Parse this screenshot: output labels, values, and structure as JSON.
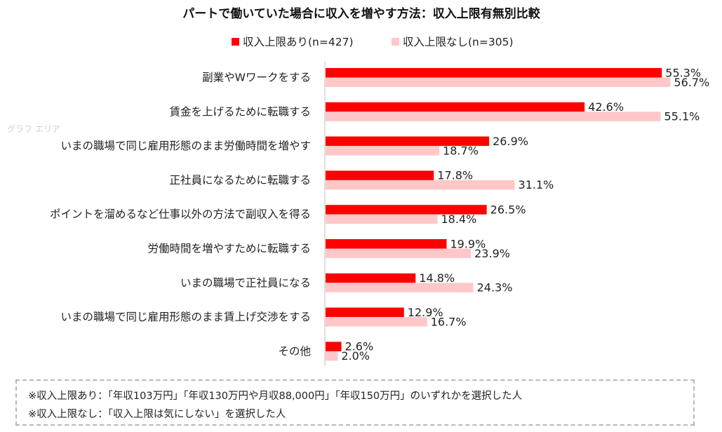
{
  "chart_data": {
    "type": "bar",
    "orientation": "horizontal",
    "title": "パートで働いていた場合に収入を増やす方法：収入上限有無別比較",
    "categories": [
      "副業やWワークをする",
      "賃金を上げるために転職する",
      "いまの職場で同じ雇用形態のまま労働時間を増やす",
      "正社員になるために転職する",
      "ポイントを溜めるなど仕事以外の方法で副収入を得る",
      "労働時間を増やすために転職する",
      "いまの職場で正社員になる",
      "いまの職場で同じ雇用形態のまま賃上げ交渉をする",
      "その他"
    ],
    "series": [
      {
        "name": "収入上限あり(n=427)",
        "color": "#ff0000",
        "values": [
          55.3,
          42.6,
          26.9,
          17.8,
          26.5,
          19.9,
          14.8,
          12.9,
          2.6
        ],
        "labels": [
          "55.3%",
          "42.6%",
          "26.9%",
          "17.8%",
          "26.5%",
          "19.9%",
          "14.8%",
          "12.9%",
          "2.6%"
        ]
      },
      {
        "name": "収入上限なし(n=305)",
        "color": "#ffc7c7",
        "values": [
          56.7,
          55.1,
          18.7,
          31.1,
          18.4,
          23.9,
          24.3,
          16.7,
          2.0
        ],
        "labels": [
          "56.7%",
          "55.1%",
          "18.7%",
          "31.1%",
          "18.4%",
          "23.9%",
          "24.3%",
          "16.7%",
          "2.0%"
        ]
      }
    ],
    "xlim": [
      0,
      57
    ],
    "legend_position": "top-center",
    "grid": false
  },
  "watermark": "グラフ エリア",
  "notes": [
    "※収入上限あり：「年収103万円」「年収130万円や月収88,000円」「年収150万円」のいずれかを選択した人",
    "※収入上限なし：「収入上限は気にしない」を選択した人"
  ]
}
